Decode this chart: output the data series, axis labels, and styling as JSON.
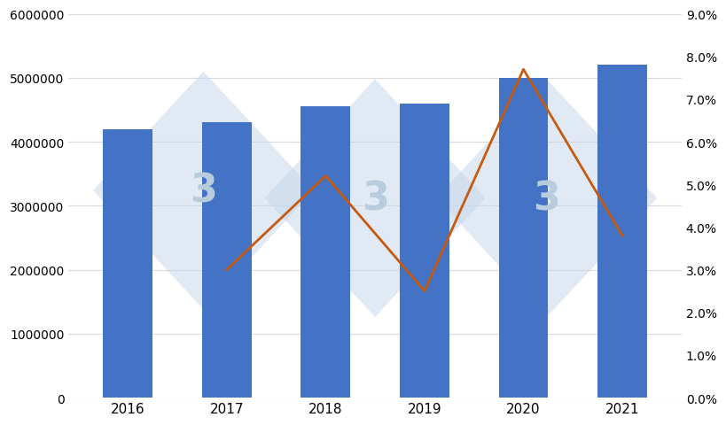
{
  "years": [
    2016,
    2017,
    2018,
    2019,
    2020,
    2021
  ],
  "production": [
    4200000,
    4300000,
    4550000,
    4600000,
    5000000,
    5200000
  ],
  "variation": [
    null,
    3.0,
    5.2,
    2.5,
    7.7,
    3.8
  ],
  "bar_color": "#4472C4",
  "line_color": "#C55A11",
  "background_color": "#FFFFFF",
  "ylim_left": [
    0,
    6000000
  ],
  "ylim_right": [
    0.0,
    0.09
  ],
  "yticks_left": [
    0,
    1000000,
    2000000,
    3000000,
    4000000,
    5000000,
    6000000
  ],
  "yticks_right": [
    0.0,
    0.01,
    0.02,
    0.03,
    0.04,
    0.05,
    0.06,
    0.07,
    0.08,
    0.09
  ],
  "grid_color": "#D9D9D9",
  "watermark_diamond_color": "#C8D8EB",
  "watermark_text_color": "#B8CCDE",
  "watermark_alpha": 0.55,
  "figsize": [
    8.2,
    4.81
  ],
  "dpi": 100
}
